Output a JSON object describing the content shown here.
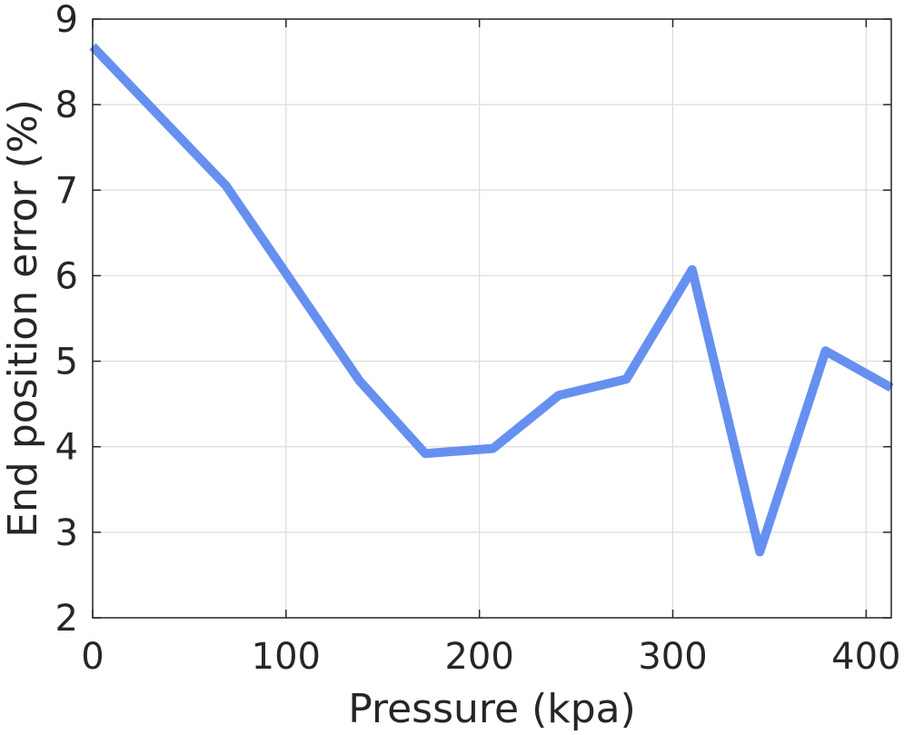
{
  "chart_data": {
    "type": "line",
    "title": "",
    "xlabel": "Pressure (kpa)",
    "ylabel": "End position error (%)",
    "xlim": [
      0,
      413
    ],
    "ylim": [
      2,
      9
    ],
    "xticks": [
      0,
      100,
      200,
      300,
      400
    ],
    "xtick_labels": [
      "0",
      "100",
      "200",
      "300",
      "400"
    ],
    "yticks": [
      2,
      3,
      4,
      5,
      6,
      7,
      8,
      9
    ],
    "ytick_labels": [
      "2",
      "3",
      "4",
      "5",
      "6",
      "7",
      "8",
      "9"
    ],
    "grid": true,
    "series": [
      {
        "color": "#6690f0",
        "x": [
          0,
          69,
          138,
          172,
          207,
          241,
          276,
          310,
          345,
          379,
          413
        ],
        "y": [
          8.68,
          7.05,
          4.77,
          3.92,
          3.98,
          4.6,
          4.79,
          6.07,
          2.77,
          5.12,
          4.69
        ]
      }
    ]
  }
}
